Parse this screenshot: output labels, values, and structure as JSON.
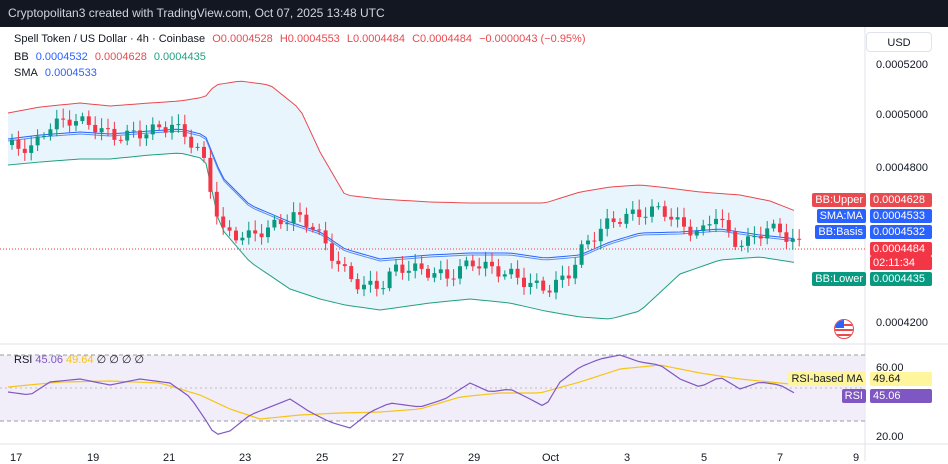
{
  "header": {
    "title": "Cryptopolitan3 created with TradingView.com, Oct 07, 2025 13:48 UTC"
  },
  "legend": {
    "symbol": "Spell Token / US Dollar · 4h · Coinbase",
    "o": "O0.0004528",
    "h": "H0.0004553",
    "l": "L0.0004484",
    "c": "C0.0004484",
    "change": "−0.0000043 (−0.95%)",
    "bb_label": "BB",
    "bb_basis": "0.0004532",
    "bb_upper": "0.0004628",
    "bb_lower": "0.0004435",
    "sma_label": "SMA",
    "sma_value": "0.0004533"
  },
  "currency_button": "USD",
  "price_axis": [
    "0.0005200",
    "0.0005000",
    "0.0004800",
    "0.0004200"
  ],
  "price_tags": {
    "upper_name": "BB:Upper",
    "upper_val": "0.0004628",
    "sma_name": "SMA:MA",
    "sma_val": "0.0004533",
    "basis_name": "BB:Basis",
    "basis_val": "0.0004532",
    "price_val": "0.0004484",
    "countdown": "02:11:34",
    "lower_name": "BB:Lower",
    "lower_val": "0.0004435"
  },
  "rsi": {
    "label": "RSI",
    "value": "45.06",
    "ma": "49.64",
    "flags": "∅ ∅ ∅ ∅",
    "ma_name": "RSI-based MA",
    "rsi_name": "RSI",
    "axis": [
      "60.00",
      "40.00",
      "20.00"
    ]
  },
  "x_axis": [
    "17",
    "19",
    "21",
    "23",
    "25",
    "27",
    "29",
    "Oct",
    "3",
    "5",
    "7",
    "9"
  ],
  "colors": {
    "up": "#089981",
    "down": "#f23645",
    "bb": "#e84a4f",
    "basis": "#2962ff",
    "lower": "#22a07e",
    "rsi": "#7e57c2",
    "rsi_ma": "#f5c518"
  }
}
